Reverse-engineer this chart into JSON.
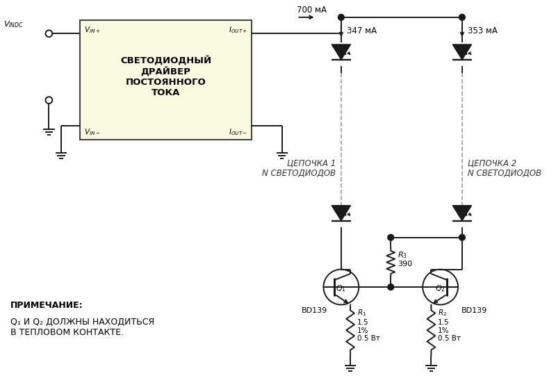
{
  "bg_color": "#ffffff",
  "box_fill": "#fafae0",
  "box_stroke": "#444444",
  "line_color": "#1a1a1a",
  "text_color": "#000000",
  "box_text": "СВЕТОДИОДНЫЙ\nДРАЙВЕР\nПОСТОЯННОГО\nТОКА",
  "current_700": "700 мА",
  "current_347": "347 мА",
  "current_353": "353 мА",
  "chain1_label": "ЦЕПОЧКА 1\nN СВЕТОДИОДОВ",
  "chain2_label": "ЦЕПОЧКА 2\nN СВЕТОДИОДОВ",
  "note_bold": "ПРИМЕЧАНИЕ:",
  "note_text": "Q₁ И Q₂ ДОЛЖНЫ НАХОДИТЬСЯ\nВ ТЕПЛОВОМ КОНТАКТЕ.",
  "bd139_1": "BD139",
  "bd139_2": "BD139"
}
